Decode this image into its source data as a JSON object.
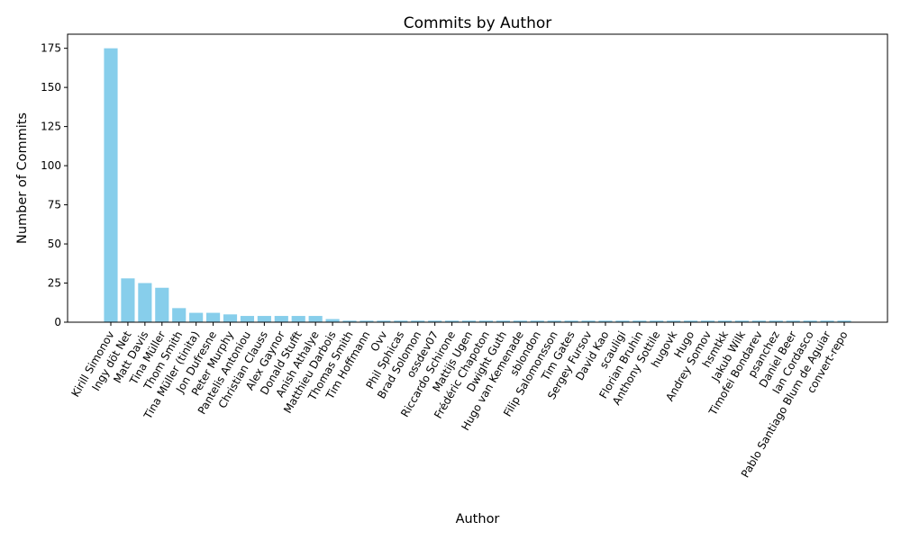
{
  "chart_data": {
    "type": "bar",
    "title": "Commits by Author",
    "xlabel": "Author",
    "ylabel": "Number of Commits",
    "ylim": [
      0,
      184
    ],
    "yticks": [
      0,
      25,
      50,
      75,
      100,
      125,
      150,
      175
    ],
    "grid": false,
    "bar_color": "#87ceeb",
    "categories": [
      "Kirill Simonov",
      "Ingy döt Net",
      "Matt Davis",
      "Tina Müller",
      "Thom Smith",
      "Tina Müller (tinita)",
      "Jon Dufresne",
      "Peter Murphy",
      "Pantelis Antoniou",
      "Christian Clauss",
      "Alex Gaynor",
      "Donald Stufft",
      "Anish Athalye",
      "Matthieu Darbois",
      "Thomas Smith",
      "Tim Hoffmann",
      "Ovv",
      "Phil Sphicas",
      "Brad Solomon",
      "ossdev07",
      "Riccardo Schirone",
      "Mattijs Ugen",
      "Frédéric Chapoton",
      "Dwight Guth",
      "Hugo van Kemenade",
      "sblondon",
      "Filip Salomonsson",
      "Tim Gates",
      "Sergey Fursov",
      "David Kao",
      "scauligi",
      "Florian Bruhin",
      "Anthony Sottile",
      "hugovk",
      "Hugo",
      "Andrey Somov",
      "hsmtkk",
      "Jakub Wilk",
      "Timofei Bondarev",
      "psanchez",
      "Daniel Beer",
      "Ian Cordasco",
      "Pablo Santiago Blum de Aguiar",
      "convert-repo"
    ],
    "values": [
      175,
      28,
      25,
      22,
      9,
      6,
      6,
      5,
      4,
      4,
      4,
      4,
      4,
      2,
      1,
      1,
      1,
      1,
      1,
      1,
      1,
      1,
      1,
      1,
      1,
      1,
      1,
      1,
      1,
      1,
      1,
      1,
      1,
      1,
      1,
      1,
      1,
      1,
      1,
      1,
      1,
      1,
      1,
      1
    ]
  }
}
